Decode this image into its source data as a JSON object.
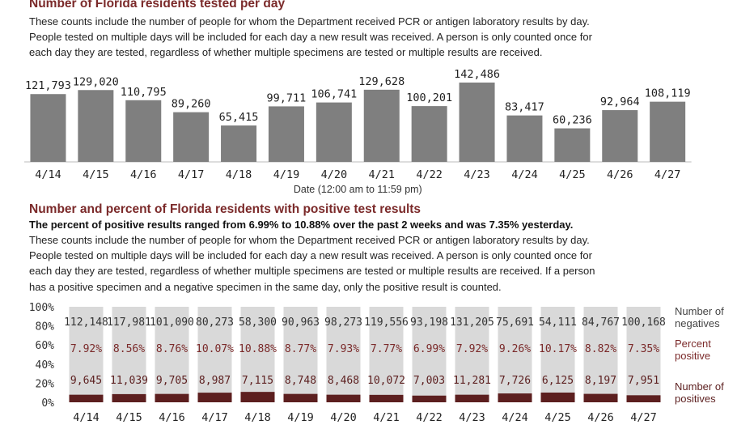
{
  "section1": {
    "title": "Number of Florida residents tested per day",
    "description": [
      "These counts include the number of people for whom the Department received PCR or antigen laboratory results by day.",
      "People tested on multiple days will be included for each day a new result was received. A person is only counted once for",
      "each day they are tested, regardless of whether multiple specimens are tested or multiple results are received."
    ]
  },
  "section2": {
    "title": "Number and percent of Florida residents with positive test results",
    "highlight": "The percent of positive results ranged from 6.99% to 10.88% over the past 2 weeks and was 7.35% yesterday.",
    "description": [
      "These counts include the number of people for whom the Department received PCR or antigen laboratory results by day.",
      "People tested on multiple days will be included for each day a new result was received. A person is only counted once for",
      "each day they are tested, regardless of whether multiple specimens are tested or multiple results are received. If a person",
      "has a positive specimen and a negative specimen in the same day, only the positive result is counted."
    ]
  },
  "colors": {
    "bar_gray": "#7f7f7f",
    "negatives_bg": "#d9d9d9",
    "positives_bar": "#5c1f1f",
    "accent_text": "#7b2a2a"
  },
  "chart_data": [
    {
      "type": "bar",
      "categories": [
        "4/14",
        "4/15",
        "4/16",
        "4/17",
        "4/18",
        "4/19",
        "4/20",
        "4/21",
        "4/22",
        "4/23",
        "4/24",
        "4/25",
        "4/26",
        "4/27"
      ],
      "values": [
        121793,
        129020,
        110795,
        89260,
        65415,
        99711,
        106741,
        129628,
        100201,
        142486,
        83417,
        60236,
        92964,
        108119
      ],
      "value_labels": [
        "121,793",
        "129,020",
        "110,795",
        "89,260",
        "65,415",
        "99,711",
        "106,741",
        "129,628",
        "100,201",
        "142,486",
        "83,417",
        "60,236",
        "92,964",
        "108,119"
      ],
      "xlabel": "Date (12:00 am to 11:59 pm)",
      "ylim": [
        0,
        142486
      ]
    },
    {
      "type": "bar",
      "stacking": "percent",
      "categories": [
        "4/14",
        "4/15",
        "4/16",
        "4/17",
        "4/18",
        "4/19",
        "4/20",
        "4/21",
        "4/22",
        "4/23",
        "4/24",
        "4/25",
        "4/26",
        "4/27"
      ],
      "yticks": [
        "100%",
        "80%",
        "60%",
        "40%",
        "20%",
        "0%"
      ],
      "ylim": [
        0,
        100
      ],
      "series": [
        {
          "name": "Number of negatives",
          "values": [
            112148,
            117981,
            101090,
            80273,
            58300,
            90963,
            98273,
            119556,
            93198,
            131205,
            75691,
            54111,
            84767,
            100168
          ],
          "labels": [
            "112,148",
            "117,981",
            "101,090",
            "80,273",
            "58,300",
            "90,963",
            "98,273",
            "119,556",
            "93,198",
            "131,205",
            "75,691",
            "54,111",
            "84,767",
            "100,168"
          ]
        },
        {
          "name": "Number of positives",
          "values": [
            9645,
            11039,
            9705,
            8987,
            7115,
            8748,
            8468,
            10072,
            7003,
            11281,
            7726,
            6125,
            8197,
            7951
          ],
          "labels": [
            "9,645",
            "11,039",
            "9,705",
            "8,987",
            "7,115",
            "8,748",
            "8,468",
            "10,072",
            "7,003",
            "11,281",
            "7,726",
            "6,125",
            "8,197",
            "7,951"
          ]
        }
      ],
      "percent_positive": [
        7.92,
        8.56,
        8.76,
        10.07,
        10.88,
        8.77,
        7.93,
        7.77,
        6.99,
        7.92,
        9.26,
        10.17,
        8.82,
        7.35
      ],
      "percent_positive_labels": [
        "7.92%",
        "8.56%",
        "8.76%",
        "10.07%",
        "10.88%",
        "8.77%",
        "7.93%",
        "7.77%",
        "6.99%",
        "7.92%",
        "9.26%",
        "10.17%",
        "8.82%",
        "7.35%"
      ],
      "legend": {
        "negatives": [
          "Number of",
          "negatives"
        ],
        "percent": [
          "Percent",
          "positive"
        ],
        "positives": [
          "Number of",
          "positives"
        ]
      }
    }
  ]
}
